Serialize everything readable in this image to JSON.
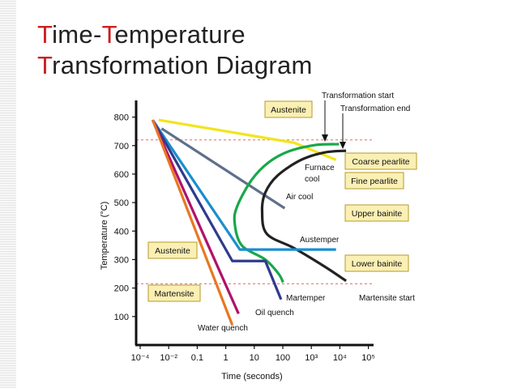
{
  "title": {
    "line1_cap": "T",
    "line1_rest": "ime-",
    "line1_cap2": "T",
    "line1_rest2": "emperature",
    "line2_cap": "T",
    "line2_rest": "ransformation Diagram"
  },
  "chart_data": {
    "type": "line",
    "ylabel": "Temperature (°C)",
    "xlabel": "Time (seconds)",
    "x_scale": "log",
    "xlim": [
      0.0001,
      1000000
    ],
    "ylim": [
      0,
      850
    ],
    "yticks": [
      "800",
      "700",
      "600",
      "500",
      "400",
      "300",
      "200",
      "100"
    ],
    "xticks": [
      "10⁻⁴",
      "10⁻²",
      "0.1",
      "1",
      "10",
      "100",
      "10³",
      "10⁴",
      "10⁵"
    ],
    "reference_lines": [
      {
        "y": 720
      },
      {
        "y": 215
      }
    ],
    "series": [
      {
        "name": "Furnace cool",
        "color": "#f2e51c",
        "points": [
          [
            0.0009,
            790
          ],
          [
            500,
            710
          ],
          [
            30000,
            650
          ]
        ]
      },
      {
        "name": "Air cool",
        "color": "#60708a",
        "points": [
          [
            0.0012,
            760
          ],
          [
            200,
            480
          ]
        ]
      },
      {
        "name": "Transformation start",
        "color": "#18a84a",
        "points": [
          [
            40000,
            705
          ],
          [
            4000,
            702
          ],
          [
            300,
            680
          ],
          [
            40,
            640
          ],
          [
            8,
            580
          ],
          [
            2,
            490
          ],
          [
            1.5,
            430
          ],
          [
            3,
            350
          ],
          [
            30,
            300
          ],
          [
            110,
            250
          ],
          [
            170,
            220
          ]
        ]
      },
      {
        "name": "Transformation end",
        "color": "#222222",
        "points": [
          [
            80000,
            682
          ],
          [
            10000,
            676
          ],
          [
            1000,
            650
          ],
          [
            100,
            595
          ],
          [
            30,
            535
          ],
          [
            22,
            470
          ],
          [
            35,
            390
          ],
          [
            500,
            340
          ],
          [
            10000,
            275
          ],
          [
            80000,
            225
          ]
        ]
      },
      {
        "name": "Austemper",
        "color": "#1b8ecf",
        "points": [
          [
            0.0005,
            790
          ],
          [
            2.5,
            335
          ],
          [
            30000,
            335
          ]
        ]
      },
      {
        "name": "Martemper",
        "color": "#2f3b8c",
        "points": [
          [
            0.0005,
            790
          ],
          [
            1.2,
            295
          ],
          [
            30,
            295
          ],
          [
            140,
            160
          ]
        ]
      },
      {
        "name": "Oil quench",
        "color": "#b0126b",
        "points": [
          [
            0.0005,
            790
          ],
          [
            2.2,
            110
          ]
        ]
      },
      {
        "name": "Water quench",
        "color": "#e87722",
        "points": [
          [
            0.0005,
            790
          ],
          [
            1.2,
            70
          ]
        ]
      }
    ],
    "region_labels": [
      "Austenite",
      "Coarse pearlite",
      "Fine pearlite",
      "Upper bainite",
      "Lower bainite",
      "Austenite",
      "Martensite"
    ],
    "annotations": {
      "transformation_start": "Transformation start",
      "transformation_end": "Transformation end",
      "furnace_cool": "Furnace\ncool",
      "air_cool": "Air cool",
      "austemper": "Austemper",
      "martemper": "Martemper",
      "oil_quench": "Oil quench",
      "water_quench": "Water quench",
      "martensite_start": "Martensite start"
    },
    "label_box_fill": "#fbf0b4",
    "label_box_stroke": "#b59a2a"
  }
}
